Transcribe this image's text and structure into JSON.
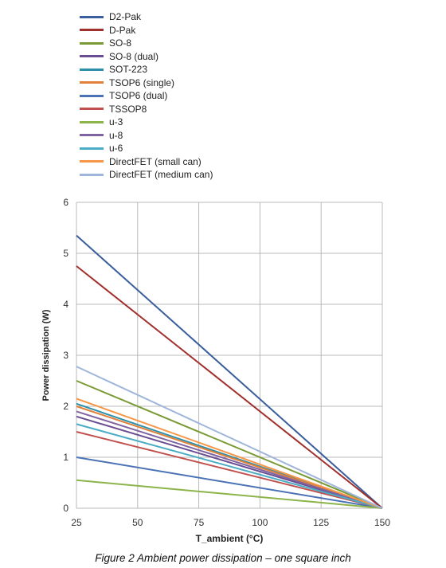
{
  "chart_data": {
    "type": "line",
    "caption": "Figure 2 Ambient power dissipation – one square inch",
    "xlabel": "T_ambient (°C)",
    "ylabel": "Power dissipation (W)",
    "xlim": [
      25,
      150
    ],
    "ylim": [
      0,
      6
    ],
    "xticks": [
      "25",
      "50",
      "75",
      "100",
      "125",
      "150"
    ],
    "yticks": [
      "0",
      "1",
      "2",
      "3",
      "4",
      "5",
      "6"
    ],
    "grid": true,
    "legend_position": "top-left, above plot",
    "series": [
      {
        "name": "D2-Pak",
        "color": "#3B5E9C",
        "x": [
          25,
          150
        ],
        "y": [
          5.35,
          0
        ]
      },
      {
        "name": "D-Pak",
        "color": "#A0302D",
        "x": [
          25,
          150
        ],
        "y": [
          4.75,
          0
        ]
      },
      {
        "name": "SO-8",
        "color": "#7A9A35",
        "x": [
          25,
          150
        ],
        "y": [
          2.5,
          0
        ]
      },
      {
        "name": "SO-8 (dual)",
        "color": "#6B4E91",
        "x": [
          25,
          150
        ],
        "y": [
          1.8,
          0
        ]
      },
      {
        "name": "SOT-223",
        "color": "#2E8FA8",
        "x": [
          25,
          150
        ],
        "y": [
          2.05,
          0
        ]
      },
      {
        "name": "TSOP6 (single)",
        "color": "#E0803A",
        "x": [
          25,
          150
        ],
        "y": [
          2.0,
          0
        ]
      },
      {
        "name": "TSOP6 (dual)",
        "color": "#4A72B5",
        "x": [
          25,
          150
        ],
        "y": [
          1.0,
          0
        ]
      },
      {
        "name": "TSSOP8",
        "color": "#C0504D",
        "x": [
          25,
          150
        ],
        "y": [
          1.5,
          0
        ]
      },
      {
        "name": "u-3",
        "color": "#8DB44A",
        "x": [
          25,
          150
        ],
        "y": [
          0.55,
          0
        ]
      },
      {
        "name": "u-8",
        "color": "#8064A2",
        "x": [
          25,
          150
        ],
        "y": [
          1.9,
          0
        ]
      },
      {
        "name": "u-6",
        "color": "#4BACC6",
        "x": [
          25,
          150
        ],
        "y": [
          1.65,
          0
        ]
      },
      {
        "name": "DirectFET (small can)",
        "color": "#F79646",
        "x": [
          25,
          150
        ],
        "y": [
          2.15,
          0
        ]
      },
      {
        "name": "DirectFET (medium can)",
        "color": "#9FB5D9",
        "x": [
          25,
          150
        ],
        "y": [
          2.78,
          0
        ]
      }
    ]
  }
}
